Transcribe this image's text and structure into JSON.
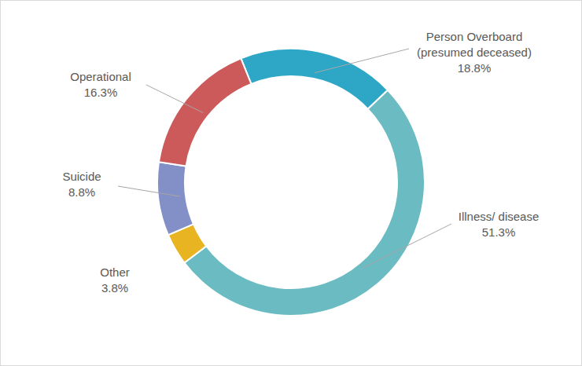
{
  "chart_data": {
    "type": "pie",
    "categories": [
      "Person Overboard (presumed deceased)",
      "Illness/ disease",
      "Other",
      "Suicide",
      "Operational"
    ],
    "values": [
      18.8,
      51.3,
      3.8,
      8.8,
      16.3
    ],
    "value_labels": [
      "18.8%",
      "51.3%",
      "3.8%",
      "8.8%",
      "16.3%"
    ],
    "colors": [
      "#2ea7c6",
      "#6bbcc2",
      "#e9b422",
      "#8390c8",
      "#cc5a5a"
    ],
    "data_labels": true
  }
}
